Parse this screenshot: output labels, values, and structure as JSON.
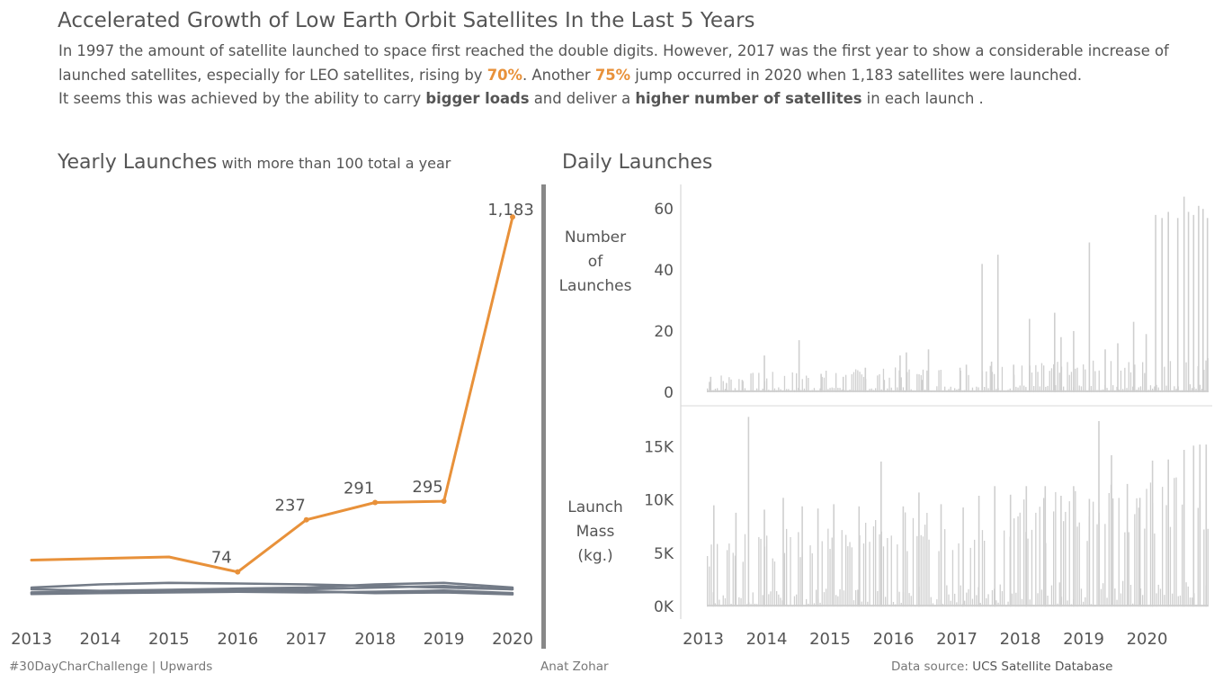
{
  "title": "Accelerated Growth of Low Earth Orbit Satellites In the Last 5 Years",
  "intro": {
    "p1a": "In 1997 the amount of satellite launched to space first reached the double digits. However, 2017 was the first year to show a considerable increase of launched satellites, especially for LEO satellites, rising by ",
    "p1_hl1": "70%",
    "p1b": ".  Another ",
    "p1_hl2": "75%",
    "p1c": "  jump occurred in 2020 when 1,183 satellites were launched.",
    "p2a": "It seems this was achieved by the ability to carry ",
    "p2_b1": "bigger loads",
    "p2b": " and deliver a ",
    "p2_b2": "higher number of satellites",
    "p2c": " in each launch ."
  },
  "left_title": {
    "main": "Yearly Launches",
    "sub": " with more than 100 total a year"
  },
  "right_title": "Daily Launches",
  "right_ylabels": {
    "launches": [
      "Number",
      "of",
      "Launches"
    ],
    "mass": [
      "Launch",
      "Mass",
      "(kg.)"
    ]
  },
  "footer": {
    "left": "#30DayCharChallenge  |  Upwards",
    "middle": "Anat Zohar",
    "right_prefix": "Data source: ",
    "right_source": "UCS Satellite Database"
  },
  "colors": {
    "highlight": "#e8913a",
    "gray_series": "#737b87",
    "bars": "#cfcfcf",
    "text": "#555555"
  },
  "chart_data": [
    {
      "type": "line",
      "x": [
        2013,
        2014,
        2015,
        2016,
        2017,
        2018,
        2019,
        2020
      ],
      "xticks": [
        "2013",
        "2014",
        "2015",
        "2016",
        "2017",
        "2018",
        "2019",
        "2020"
      ],
      "ylim": [
        0,
        1220
      ],
      "series": [
        {
          "values": [
            null,
            null,
            null,
            74,
            237,
            291,
            295,
            1183
          ],
          "highlight": true,
          "labels": [
            "",
            "",
            "",
            "74",
            "237",
            "291",
            "295",
            "1,183"
          ]
        },
        {
          "values": [
            null,
            null,
            null,
            null,
            null,
            null,
            null,
            null
          ],
          "highlight": true
        },
        {
          "values": [
            null,
            null,
            null,
            null,
            null,
            null,
            null,
            null
          ]
        },
        {
          "values": [
            null,
            null,
            null,
            null,
            null,
            null,
            null,
            null
          ]
        },
        {
          "values": [
            null,
            null,
            null,
            null,
            null,
            null,
            null,
            null
          ]
        },
        {
          "values": [
            null,
            null,
            null,
            null,
            null,
            null,
            null,
            null
          ]
        }
      ],
      "line_values": [
        [
          111,
          116,
          121,
          74,
          237,
          291,
          295,
          1183
        ],
        [
          25,
          35,
          40,
          38,
          35,
          30,
          25,
          20
        ],
        [
          20,
          15,
          18,
          22,
          25,
          35,
          40,
          25
        ],
        [
          10,
          12,
          15,
          18,
          20,
          25,
          30,
          20
        ],
        [
          8,
          12,
          14,
          12,
          10,
          12,
          16,
          8
        ],
        [
          5,
          8,
          10,
          12,
          14,
          8,
          10,
          4
        ]
      ]
    },
    {
      "type": "bar",
      "name": "Number of Launches",
      "xticks": [
        "2013",
        "2014",
        "2015",
        "2016",
        "2017",
        "2018",
        "2019",
        "2020"
      ],
      "ylim": [
        -3,
        68
      ],
      "yticks": [
        0,
        20,
        40,
        60
      ],
      "ytick_labels": [
        "0",
        "20",
        "40",
        "60"
      ],
      "x_start": 2013,
      "x_end": 2020.95,
      "spikes": [
        [
          2013.05,
          5
        ],
        [
          2013.3,
          3
        ],
        [
          2013.55,
          4
        ],
        [
          2013.9,
          12
        ],
        [
          2014.45,
          17
        ],
        [
          2014.8,
          6
        ],
        [
          2015.15,
          5
        ],
        [
          2015.5,
          8
        ],
        [
          2015.8,
          4
        ],
        [
          2016.05,
          12
        ],
        [
          2016.15,
          13
        ],
        [
          2016.4,
          4
        ],
        [
          2016.5,
          14
        ],
        [
          2017.0,
          8
        ],
        [
          2017.1,
          9
        ],
        [
          2017.35,
          42
        ],
        [
          2017.5,
          10
        ],
        [
          2017.6,
          45
        ],
        [
          2017.85,
          9
        ],
        [
          2018.1,
          24
        ],
        [
          2018.5,
          26
        ],
        [
          2018.6,
          18
        ],
        [
          2018.8,
          20
        ],
        [
          2019.05,
          49
        ],
        [
          2019.3,
          14
        ],
        [
          2019.5,
          16
        ],
        [
          2019.75,
          23
        ],
        [
          2019.95,
          19
        ],
        [
          2020.1,
          58
        ],
        [
          2020.2,
          57
        ],
        [
          2020.3,
          59
        ],
        [
          2020.45,
          57
        ],
        [
          2020.55,
          64
        ],
        [
          2020.62,
          59
        ],
        [
          2020.7,
          58
        ],
        [
          2020.78,
          61
        ],
        [
          2020.85,
          60
        ],
        [
          2020.92,
          57
        ]
      ]
    },
    {
      "type": "bar",
      "name": "Launch Mass (kg.)",
      "xticks": [
        "2013",
        "2014",
        "2015",
        "2016",
        "2017",
        "2018",
        "2019",
        "2020"
      ],
      "ylim": [
        -1000,
        18500
      ],
      "yticks": [
        0,
        5000,
        10000,
        15000
      ],
      "ytick_labels": [
        "0K",
        "5K",
        "10K",
        "15K"
      ],
      "x_start": 2013,
      "x_end": 2020.95,
      "spikes": [
        [
          2013.1,
          9500
        ],
        [
          2013.45,
          8800
        ],
        [
          2013.65,
          17800
        ],
        [
          2013.9,
          9100
        ],
        [
          2014.2,
          10200
        ],
        [
          2014.5,
          9400
        ],
        [
          2014.75,
          9200
        ],
        [
          2015.0,
          9600
        ],
        [
          2015.4,
          9400
        ],
        [
          2015.75,
          13600
        ],
        [
          2016.1,
          9400
        ],
        [
          2016.35,
          10700
        ],
        [
          2016.7,
          9600
        ],
        [
          2017.05,
          9300
        ],
        [
          2017.3,
          10400
        ],
        [
          2017.55,
          11300
        ],
        [
          2017.8,
          10500
        ],
        [
          2018.05,
          11300
        ],
        [
          2018.35,
          11300
        ],
        [
          2018.6,
          10400
        ],
        [
          2018.8,
          11300
        ],
        [
          2019.05,
          10100
        ],
        [
          2019.2,
          17400
        ],
        [
          2019.4,
          14200
        ],
        [
          2019.65,
          11500
        ],
        [
          2019.85,
          10200
        ],
        [
          2020.05,
          13700
        ],
        [
          2020.3,
          13800
        ],
        [
          2020.55,
          14700
        ],
        [
          2020.7,
          15100
        ],
        [
          2020.8,
          15200
        ],
        [
          2020.9,
          15200
        ]
      ]
    }
  ]
}
